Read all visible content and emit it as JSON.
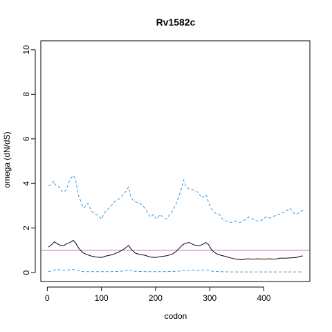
{
  "chart_data": {
    "type": "line",
    "title": "Rv1582c",
    "xlabel": "codon",
    "ylabel": "omega (dN/dS)",
    "xlim": [
      -12,
      485
    ],
    "ylim": [
      -0.4,
      10.4
    ],
    "x_ticks": [
      0,
      100,
      200,
      300,
      400
    ],
    "y_ticks": [
      0,
      2,
      4,
      6,
      8,
      10
    ],
    "x_tick_labels": [
      "0",
      "100",
      "200",
      "300",
      "400"
    ],
    "y_tick_labels": [
      "0",
      "2",
      "4",
      "6",
      "8",
      "10"
    ],
    "grid": false,
    "reference_line": {
      "y": 1,
      "color": "#cc66cc"
    },
    "series": [
      {
        "style": "dashed",
        "color": "#3399dd",
        "points": [
          [
            2,
            3.9
          ],
          [
            8,
            3.95
          ],
          [
            12,
            4.1
          ],
          [
            16,
            3.9
          ],
          [
            22,
            3.85
          ],
          [
            28,
            3.6
          ],
          [
            35,
            3.7
          ],
          [
            42,
            4.2
          ],
          [
            48,
            4.35
          ],
          [
            52,
            4.2
          ],
          [
            57,
            3.5
          ],
          [
            62,
            3.2
          ],
          [
            67,
            2.9
          ],
          [
            75,
            3.1
          ],
          [
            82,
            2.75
          ],
          [
            90,
            2.6
          ],
          [
            95,
            2.55
          ],
          [
            100,
            2.4
          ],
          [
            106,
            2.7
          ],
          [
            112,
            2.85
          ],
          [
            118,
            3.0
          ],
          [
            125,
            3.2
          ],
          [
            132,
            3.3
          ],
          [
            138,
            3.45
          ],
          [
            144,
            3.6
          ],
          [
            150,
            3.85
          ],
          [
            154,
            3.4
          ],
          [
            160,
            3.2
          ],
          [
            166,
            3.15
          ],
          [
            175,
            3.05
          ],
          [
            183,
            2.8
          ],
          [
            190,
            2.5
          ],
          [
            196,
            2.6
          ],
          [
            202,
            2.4
          ],
          [
            208,
            2.6
          ],
          [
            214,
            2.5
          ],
          [
            220,
            2.4
          ],
          [
            226,
            2.6
          ],
          [
            232,
            2.8
          ],
          [
            238,
            3.1
          ],
          [
            244,
            3.5
          ],
          [
            248,
            3.8
          ],
          [
            252,
            4.15
          ],
          [
            256,
            3.85
          ],
          [
            262,
            3.75
          ],
          [
            270,
            3.7
          ],
          [
            278,
            3.6
          ],
          [
            286,
            3.35
          ],
          [
            293,
            3.5
          ],
          [
            300,
            3.0
          ],
          [
            306,
            2.75
          ],
          [
            312,
            2.65
          ],
          [
            318,
            2.6
          ],
          [
            325,
            2.35
          ],
          [
            333,
            2.3
          ],
          [
            340,
            2.25
          ],
          [
            348,
            2.3
          ],
          [
            356,
            2.25
          ],
          [
            364,
            2.35
          ],
          [
            372,
            2.5
          ],
          [
            380,
            2.4
          ],
          [
            388,
            2.3
          ],
          [
            396,
            2.35
          ],
          [
            404,
            2.5
          ],
          [
            412,
            2.45
          ],
          [
            420,
            2.55
          ],
          [
            428,
            2.6
          ],
          [
            436,
            2.7
          ],
          [
            444,
            2.8
          ],
          [
            448,
            2.9
          ],
          [
            454,
            2.7
          ],
          [
            460,
            2.6
          ],
          [
            466,
            2.7
          ],
          [
            472,
            2.8
          ]
        ]
      },
      {
        "style": "solid",
        "color": "#000000",
        "points": [
          [
            2,
            1.15
          ],
          [
            8,
            1.25
          ],
          [
            13,
            1.38
          ],
          [
            18,
            1.3
          ],
          [
            24,
            1.22
          ],
          [
            30,
            1.2
          ],
          [
            36,
            1.3
          ],
          [
            42,
            1.35
          ],
          [
            48,
            1.45
          ],
          [
            53,
            1.3
          ],
          [
            58,
            1.1
          ],
          [
            65,
            0.9
          ],
          [
            72,
            0.82
          ],
          [
            80,
            0.75
          ],
          [
            90,
            0.7
          ],
          [
            100,
            0.68
          ],
          [
            110,
            0.75
          ],
          [
            120,
            0.8
          ],
          [
            130,
            0.9
          ],
          [
            138,
            1.0
          ],
          [
            144,
            1.1
          ],
          [
            150,
            1.22
          ],
          [
            155,
            1.05
          ],
          [
            162,
            0.88
          ],
          [
            170,
            0.82
          ],
          [
            180,
            0.78
          ],
          [
            190,
            0.7
          ],
          [
            200,
            0.68
          ],
          [
            210,
            0.72
          ],
          [
            220,
            0.75
          ],
          [
            230,
            0.82
          ],
          [
            238,
            0.95
          ],
          [
            244,
            1.1
          ],
          [
            250,
            1.25
          ],
          [
            256,
            1.32
          ],
          [
            262,
            1.35
          ],
          [
            270,
            1.25
          ],
          [
            278,
            1.2
          ],
          [
            286,
            1.25
          ],
          [
            293,
            1.35
          ],
          [
            298,
            1.25
          ],
          [
            304,
            1.0
          ],
          [
            312,
            0.85
          ],
          [
            320,
            0.78
          ],
          [
            330,
            0.72
          ],
          [
            340,
            0.65
          ],
          [
            350,
            0.6
          ],
          [
            360,
            0.58
          ],
          [
            370,
            0.62
          ],
          [
            380,
            0.6
          ],
          [
            390,
            0.62
          ],
          [
            400,
            0.6
          ],
          [
            410,
            0.62
          ],
          [
            420,
            0.6
          ],
          [
            430,
            0.65
          ],
          [
            440,
            0.65
          ],
          [
            450,
            0.66
          ],
          [
            460,
            0.68
          ],
          [
            466,
            0.72
          ],
          [
            472,
            0.75
          ]
        ]
      },
      {
        "style": "dashed",
        "color": "#3399dd",
        "points": [
          [
            2,
            0.05
          ],
          [
            10,
            0.08
          ],
          [
            16,
            0.15
          ],
          [
            24,
            0.12
          ],
          [
            32,
            0.1
          ],
          [
            40,
            0.12
          ],
          [
            48,
            0.14
          ],
          [
            56,
            0.1
          ],
          [
            64,
            0.05
          ],
          [
            75,
            0.04
          ],
          [
            90,
            0.04
          ],
          [
            110,
            0.04
          ],
          [
            130,
            0.05
          ],
          [
            145,
            0.08
          ],
          [
            150,
            0.15
          ],
          [
            156,
            0.07
          ],
          [
            170,
            0.05
          ],
          [
            190,
            0.04
          ],
          [
            210,
            0.04
          ],
          [
            230,
            0.05
          ],
          [
            245,
            0.07
          ],
          [
            255,
            0.1
          ],
          [
            265,
            0.12
          ],
          [
            280,
            0.1
          ],
          [
            295,
            0.12
          ],
          [
            305,
            0.06
          ],
          [
            320,
            0.04
          ],
          [
            340,
            0.03
          ],
          [
            360,
            0.03
          ],
          [
            380,
            0.03
          ],
          [
            400,
            0.03
          ],
          [
            420,
            0.03
          ],
          [
            440,
            0.03
          ],
          [
            460,
            0.03
          ],
          [
            472,
            0.03
          ]
        ]
      }
    ]
  }
}
